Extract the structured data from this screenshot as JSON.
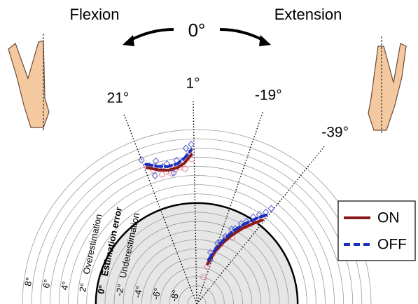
{
  "chart_data": {
    "type": "polar",
    "top_labels": {
      "left": "Flexion",
      "center": "0°",
      "right": "Extension"
    },
    "rlim": [
      -11,
      8
    ],
    "rticks": [
      {
        "value": 8,
        "label": "8°"
      },
      {
        "value": 6,
        "label": "6°"
      },
      {
        "value": 4,
        "label": "4°"
      },
      {
        "value": 2,
        "label": "2°"
      },
      {
        "value": 0,
        "label": "0°"
      },
      {
        "value": -2,
        "label": "-2°"
      },
      {
        "value": -4,
        "label": "-4°"
      },
      {
        "value": -6,
        "label": "-6°"
      },
      {
        "value": -8,
        "label": "-8°"
      }
    ],
    "minor_rticks": [
      7,
      5,
      3,
      1,
      -1,
      -3,
      -5,
      -7,
      -9,
      -10
    ],
    "thetaticks": [
      {
        "value": 21,
        "label": "21°"
      },
      {
        "value": 1,
        "label": "1°"
      },
      {
        "value": -19,
        "label": "-19°"
      },
      {
        "value": -39,
        "label": "-39°"
      }
    ],
    "annotations": [
      {
        "text": "Overestimation",
        "r": 2
      },
      {
        "text": "Estimation error",
        "r": 0
      },
      {
        "text": "Underestimation",
        "r": -2
      }
    ],
    "legend": "right",
    "series": [
      {
        "name": "ON",
        "color": "#8b1a1a",
        "marker_color": "#e8879a",
        "marker": "circle",
        "line_style": "solid",
        "x": [
          20,
          16,
          12,
          8,
          5,
          2,
          null,
          -15,
          -19,
          -23,
          -27,
          -31,
          -35,
          -38
        ],
        "values": [
          4.8,
          4.2,
          3.9,
          4.0,
          4.4,
          5.3,
          null,
          -6.5,
          -5.0,
          -3.8,
          -2.6,
          -1.4,
          -0.3,
          0.6
        ],
        "scatter_x": [
          20,
          18,
          15,
          13,
          11,
          9,
          7,
          5,
          3,
          2,
          17,
          10,
          -14,
          -16,
          -18,
          -20,
          -22,
          -24,
          -26,
          -28,
          -30,
          -32,
          -34,
          -36,
          -37
        ],
        "scatter_values": [
          5.0,
          4.3,
          3.6,
          3.8,
          3.5,
          3.9,
          4.0,
          3.8,
          5.5,
          4.8,
          4.6,
          4.2,
          -8,
          -6.8,
          -5.2,
          -4.5,
          -4.0,
          -3.2,
          -2.5,
          -2.8,
          -1.5,
          -1.0,
          -0.5,
          0.2,
          0.8
        ]
      },
      {
        "name": "OFF",
        "color": "#1a2fbf",
        "marker_color": "#5a6ad8",
        "marker": "diamond",
        "line_style": "dashed",
        "x": [
          20,
          16,
          12,
          8,
          5,
          2,
          null,
          -15,
          -19,
          -23,
          -27,
          -31,
          -35,
          -38
        ],
        "values": [
          5.2,
          4.6,
          4.3,
          4.4,
          4.9,
          5.8,
          null,
          -6.0,
          -4.6,
          -3.3,
          -2.0,
          -0.8,
          0.4,
          1.3
        ],
        "scatter_x": [
          21,
          19,
          16,
          14,
          12,
          10,
          8,
          6,
          4,
          2,
          18,
          -15,
          -17,
          -19,
          -21,
          -23,
          -25,
          -27,
          -29,
          -31,
          -33,
          -35,
          -37,
          -38
        ],
        "scatter_values": [
          5.8,
          4.9,
          5.2,
          4.4,
          4.6,
          3.5,
          4.8,
          4.6,
          6.0,
          6.4,
          3.7,
          -5.2,
          -6.0,
          -4.0,
          -3.8,
          -3.0,
          -2.0,
          -1.8,
          -1.0,
          -0.5,
          0.3,
          0.9,
          1.5,
          2.2
        ]
      }
    ]
  }
}
